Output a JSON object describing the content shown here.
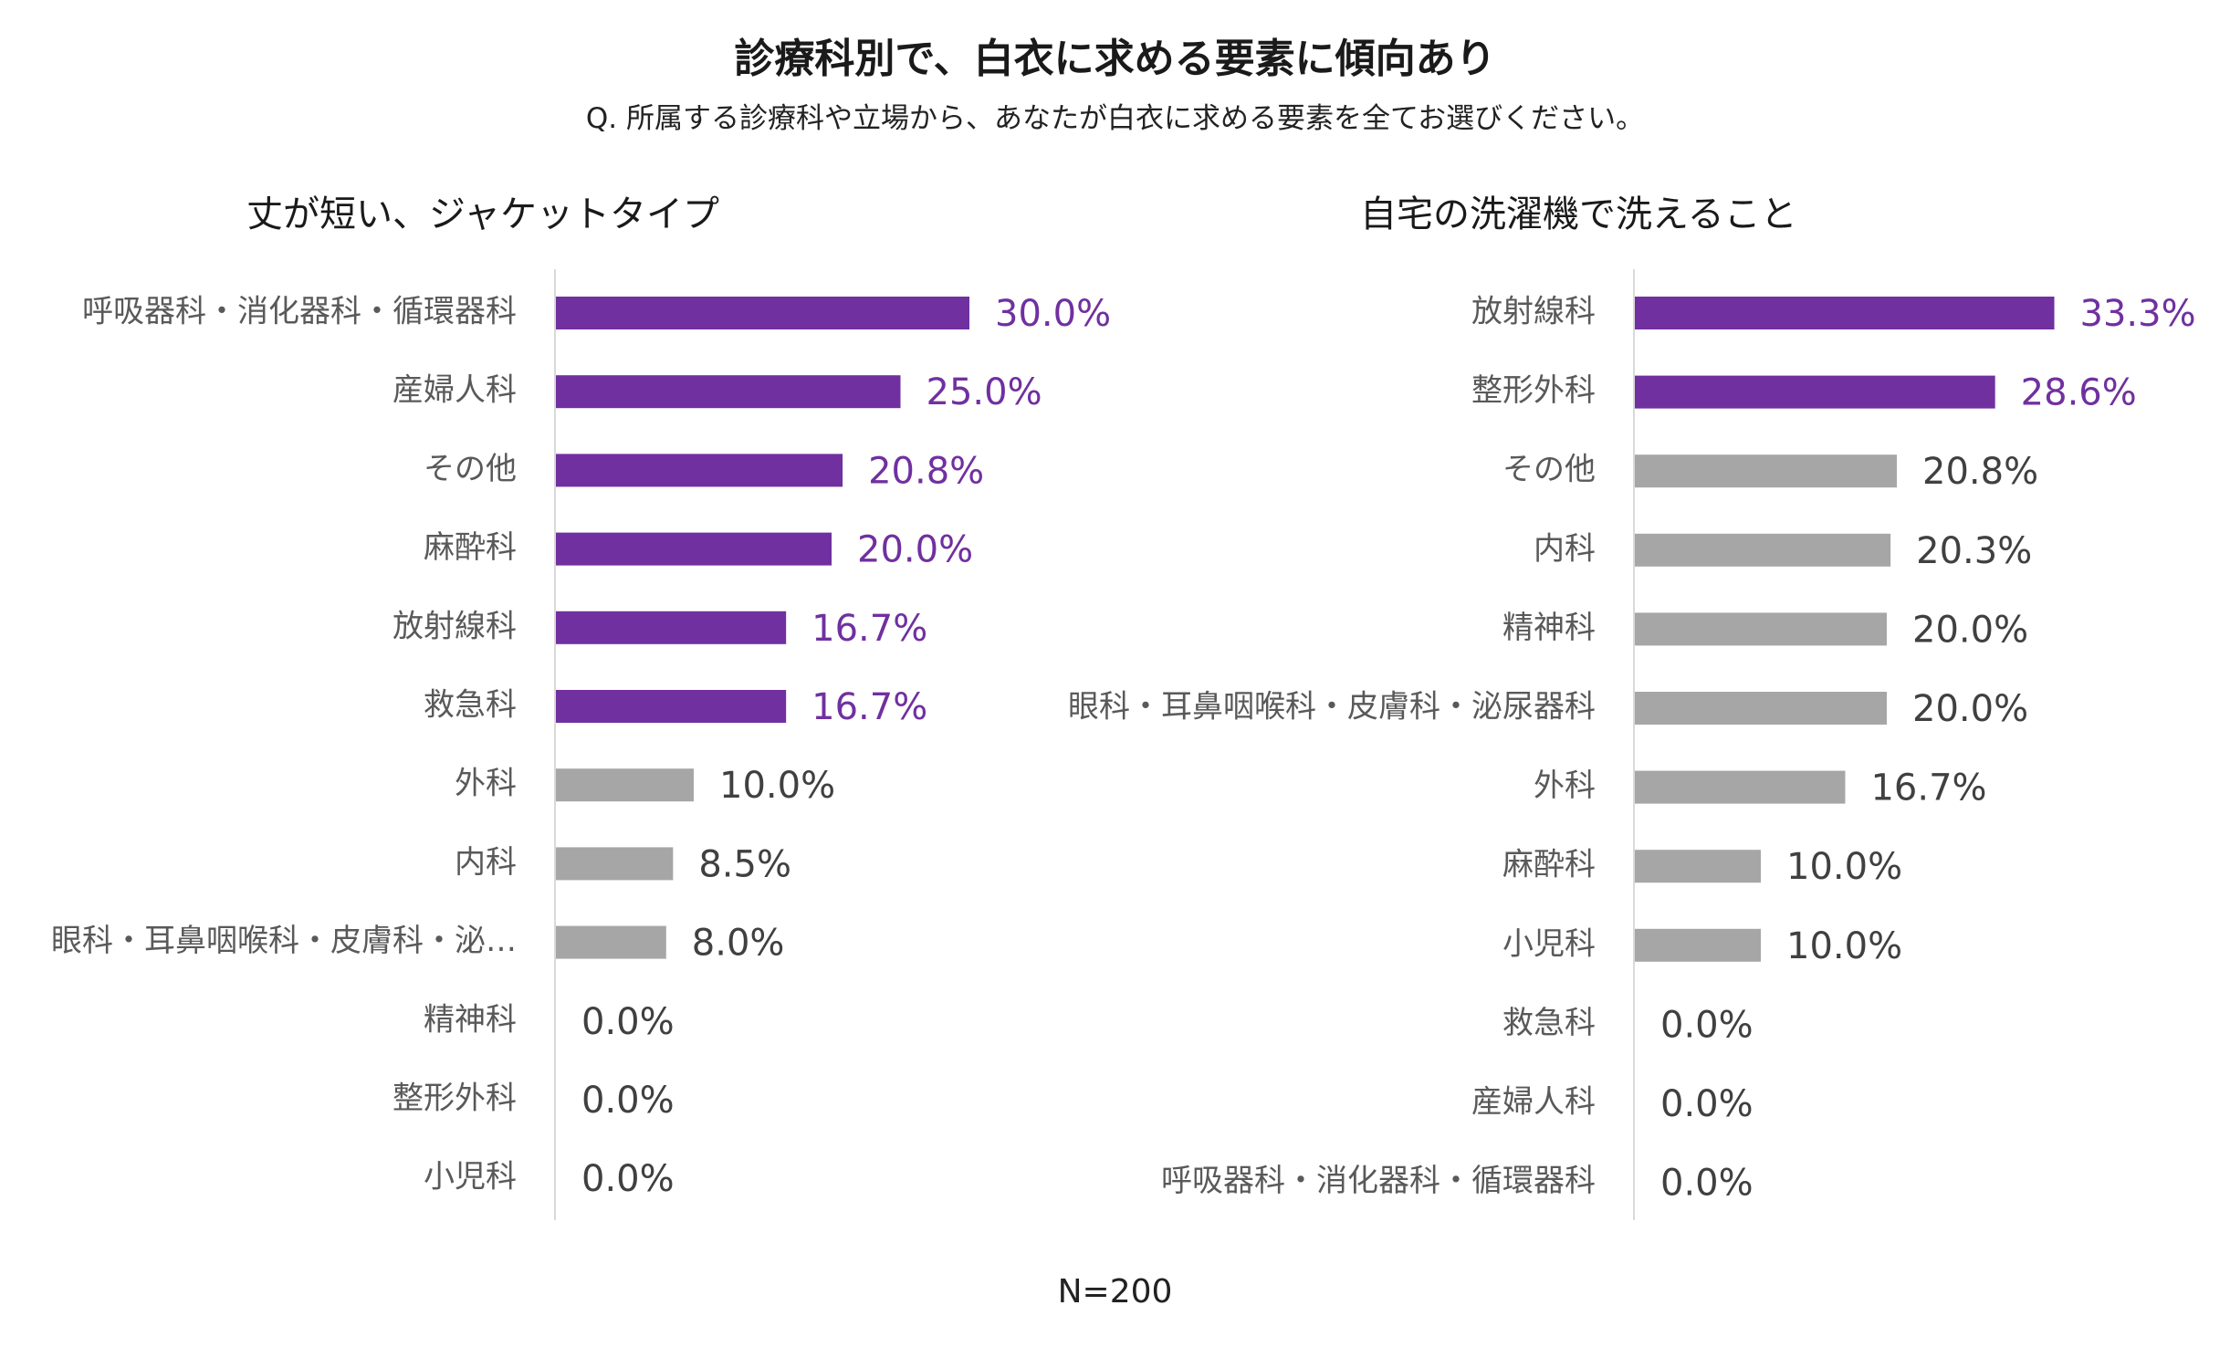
{
  "title": "診療科別で、白衣に求める要素に傾向あり",
  "subtitle": "Q. 所属する診療科や立場から、あなたが白衣に求める要素を全てお選びください。",
  "footnote": "N=200",
  "colors": {
    "highlight": "#7030A0",
    "neutral": "#A6A6A6",
    "value_neutral": "#404040",
    "axis": "#D9D9D9"
  },
  "chart_data": [
    {
      "type": "bar",
      "orientation": "horizontal",
      "title": "丈が短い、ジャケットタイプ",
      "categories": [
        "呼吸器科・消化器科・循環器科",
        "産婦人科",
        "その他",
        "麻酔科",
        "放射線科",
        "救急科",
        "外科",
        "内科",
        "眼科・耳鼻咽喉科・皮膚科・泌…",
        "精神科",
        "整形外科",
        "小児科"
      ],
      "values": [
        30.0,
        25.0,
        20.8,
        20.0,
        16.7,
        16.7,
        10.0,
        8.5,
        8.0,
        0.0,
        0.0,
        0.0
      ],
      "labels": [
        "30.0%",
        "25.0%",
        "20.8%",
        "20.0%",
        "16.7%",
        "16.7%",
        "10.0%",
        "8.5%",
        "8.0%",
        "0.0%",
        "0.0%",
        "0.0%"
      ],
      "highlighted_count": 6,
      "value_unit": "%",
      "grid": false
    },
    {
      "type": "bar",
      "orientation": "horizontal",
      "title": "自宅の洗濯機で洗えること",
      "categories": [
        "放射線科",
        "整形外科",
        "その他",
        "内科",
        "精神科",
        "眼科・耳鼻咽喉科・皮膚科・泌尿器科",
        "外科",
        "麻酔科",
        "小児科",
        "救急科",
        "産婦人科",
        "呼吸器科・消化器科・循環器科"
      ],
      "values": [
        33.3,
        28.6,
        20.8,
        20.3,
        20.0,
        20.0,
        16.7,
        10.0,
        10.0,
        0.0,
        0.0,
        0.0
      ],
      "labels": [
        "33.3%",
        "28.6%",
        "20.8%",
        "20.3%",
        "20.0%",
        "20.0%",
        "16.7%",
        "10.0%",
        "10.0%",
        "0.0%",
        "0.0%",
        "0.0%"
      ],
      "highlighted_count": 2,
      "value_unit": "%",
      "grid": false
    }
  ]
}
